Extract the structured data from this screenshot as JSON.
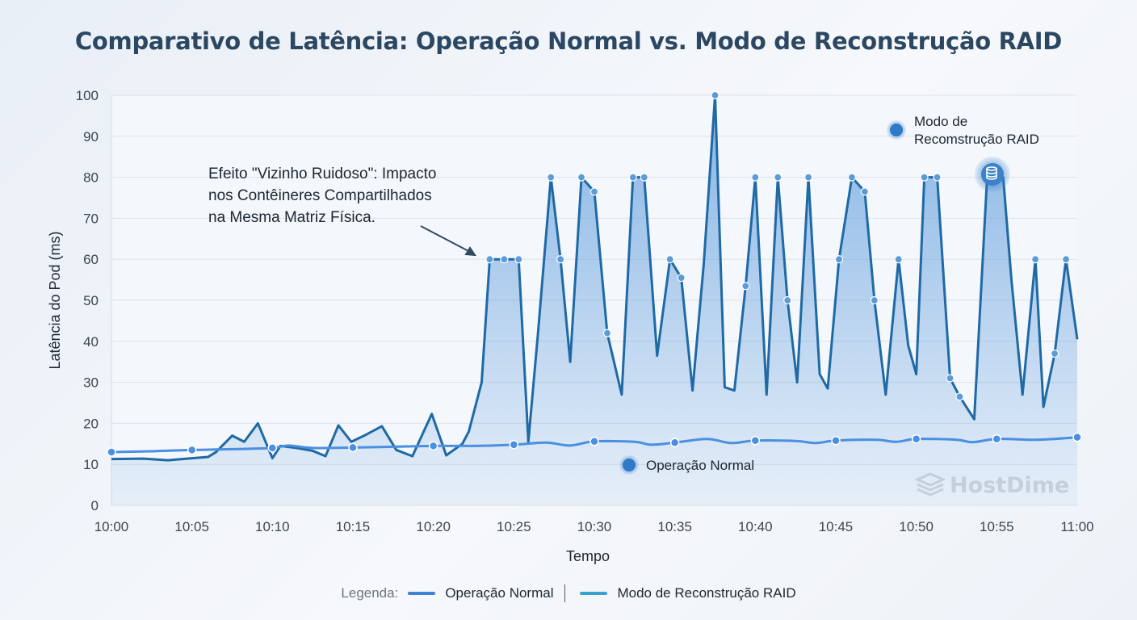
{
  "title": "Comparativo de Latência: Operação Normal vs. Modo de Reconstrução RAID",
  "chart_data": {
    "type": "area",
    "title": "Comparativo de Latência: Operação Normal vs. Modo de Reconstrução RAID",
    "xlabel": "Tempo",
    "ylabel": "Latência do Pod (ms)",
    "xlim": [
      "10:00",
      "11:00"
    ],
    "ylim": [
      0,
      100
    ],
    "x_ticks": [
      "10:00",
      "10:05",
      "10:10",
      "10:15",
      "10:20",
      "10:25",
      "10:30",
      "10:35",
      "10:40",
      "10:45",
      "10:50",
      "10:55",
      "11:00"
    ],
    "y_ticks": [
      0,
      10,
      20,
      30,
      40,
      50,
      60,
      70,
      80,
      90,
      100
    ],
    "grid": true,
    "colors": {
      "raid_line": "#1f6aa5",
      "raid_fill": "#4a90d9",
      "normal_line": "#4a8fe0",
      "marker": "#5b9bd8"
    },
    "series": [
      {
        "name": "Operação Normal",
        "points": [
          [
            "10:00:00",
            13,
            1
          ],
          [
            "10:02:30",
            13.2,
            0
          ],
          [
            "10:05:00",
            13.5,
            1
          ],
          [
            "10:07:30",
            13.7,
            0
          ],
          [
            "10:10:00",
            14,
            1
          ],
          [
            "10:11:00",
            14.6,
            0
          ],
          [
            "10:12:30",
            14,
            0
          ],
          [
            "10:15:00",
            14.1,
            1
          ],
          [
            "10:17:30",
            14.3,
            0
          ],
          [
            "10:20:00",
            14.5,
            1
          ],
          [
            "10:22:30",
            14.5,
            0
          ],
          [
            "10:25:00",
            14.8,
            1
          ],
          [
            "10:27:00",
            15.3,
            0
          ],
          [
            "10:28:30",
            14.6,
            0
          ],
          [
            "10:30:00",
            15.6,
            1
          ],
          [
            "10:32:30",
            15.5,
            0
          ],
          [
            "10:33:30",
            14.8,
            0
          ],
          [
            "10:35:00",
            15.3,
            1
          ],
          [
            "10:37:00",
            16.2,
            0
          ],
          [
            "10:38:30",
            15.2,
            0
          ],
          [
            "10:40:00",
            15.8,
            1
          ],
          [
            "10:42:30",
            15.7,
            0
          ],
          [
            "10:43:45",
            15.2,
            0
          ],
          [
            "10:45:00",
            15.8,
            1
          ],
          [
            "10:47:30",
            16,
            0
          ],
          [
            "10:48:45",
            15.5,
            0
          ],
          [
            "10:50:00",
            16.2,
            1
          ],
          [
            "10:52:30",
            16,
            0
          ],
          [
            "10:53:30",
            15.4,
            0
          ],
          [
            "10:55:00",
            16.2,
            1
          ],
          [
            "10:57:30",
            16,
            0
          ],
          [
            "11:00:00",
            16.6,
            1
          ]
        ]
      },
      {
        "name": "Modo de Reconstrução RAID",
        "points": [
          [
            "10:00:00",
            11.3,
            0
          ],
          [
            "10:02:00",
            11.4,
            0
          ],
          [
            "10:03:30",
            11,
            0
          ],
          [
            "10:05:00",
            11.5,
            0
          ],
          [
            "10:06:00",
            11.8,
            0
          ],
          [
            "10:06:30",
            13,
            0
          ],
          [
            "10:07:30",
            17,
            0
          ],
          [
            "10:08:15",
            15.5,
            0
          ],
          [
            "10:09:06",
            20,
            0
          ],
          [
            "10:10:00",
            11.5,
            0
          ],
          [
            "10:10:30",
            14.5,
            0
          ],
          [
            "10:11:30",
            14,
            0
          ],
          [
            "10:12:30",
            13.3,
            0
          ],
          [
            "10:13:18",
            12,
            0
          ],
          [
            "10:14:06",
            19.5,
            0
          ],
          [
            "10:14:54",
            15.5,
            0
          ],
          [
            "10:15:42",
            17,
            0
          ],
          [
            "10:16:48",
            19.3,
            0
          ],
          [
            "10:17:42",
            13.5,
            0
          ],
          [
            "10:18:42",
            12,
            0
          ],
          [
            "10:19:54",
            22.3,
            0
          ],
          [
            "10:20:48",
            12.2,
            0
          ],
          [
            "10:21:48",
            15,
            0
          ],
          [
            "10:22:12",
            18,
            0
          ],
          [
            "10:23:00",
            30,
            0
          ],
          [
            "10:23:30",
            60,
            1
          ],
          [
            "10:24:24",
            60,
            1
          ],
          [
            "10:25:18",
            60,
            1
          ],
          [
            "10:25:54",
            15.5,
            0
          ],
          [
            "10:26:30",
            42,
            0
          ],
          [
            "10:27:18",
            80,
            1
          ],
          [
            "10:27:54",
            60,
            1
          ],
          [
            "10:28:30",
            35,
            0
          ],
          [
            "10:29:12",
            80,
            1
          ],
          [
            "10:30:00",
            76.5,
            1
          ],
          [
            "10:30:48",
            42,
            1
          ],
          [
            "10:31:42",
            27,
            0
          ],
          [
            "10:32:24",
            80,
            1
          ],
          [
            "10:33:06",
            80,
            1
          ],
          [
            "10:33:54",
            36.5,
            0
          ],
          [
            "10:34:42",
            60,
            1
          ],
          [
            "10:35:24",
            55.5,
            1
          ],
          [
            "10:36:06",
            28,
            0
          ],
          [
            "10:36:48",
            59,
            0
          ],
          [
            "10:37:30",
            100,
            1
          ],
          [
            "10:38:06",
            28.8,
            0
          ],
          [
            "10:38:42",
            28,
            0
          ],
          [
            "10:39:24",
            53.5,
            1
          ],
          [
            "10:40:00",
            80,
            1
          ],
          [
            "10:40:42",
            27,
            0
          ],
          [
            "10:41:24",
            80,
            1
          ],
          [
            "10:42:00",
            50,
            1
          ],
          [
            "10:42:36",
            30,
            0
          ],
          [
            "10:43:18",
            80,
            1
          ],
          [
            "10:44:00",
            32,
            0
          ],
          [
            "10:44:30",
            28.5,
            0
          ],
          [
            "10:45:12",
            60,
            1
          ],
          [
            "10:46:00",
            80,
            1
          ],
          [
            "10:46:48",
            76.5,
            1
          ],
          [
            "10:47:24",
            50,
            1
          ],
          [
            "10:48:06",
            27,
            0
          ],
          [
            "10:48:54",
            60,
            1
          ],
          [
            "10:49:30",
            39,
            0
          ],
          [
            "10:50:00",
            32,
            0
          ],
          [
            "10:50:30",
            80,
            1
          ],
          [
            "10:51:18",
            80,
            1
          ],
          [
            "10:52:06",
            31,
            1
          ],
          [
            "10:52:42",
            26.5,
            1
          ],
          [
            "10:53:36",
            21,
            0
          ],
          [
            "10:54:24",
            80,
            0
          ],
          [
            "10:55:24",
            80,
            0
          ],
          [
            "10:55:54",
            55.5,
            0
          ],
          [
            "10:56:36",
            27,
            0
          ],
          [
            "10:57:24",
            60,
            1
          ],
          [
            "10:57:54",
            24,
            0
          ],
          [
            "10:58:36",
            37,
            1
          ],
          [
            "10:59:18",
            60,
            1
          ],
          [
            "11:00:00",
            40.5,
            0
          ]
        ]
      }
    ],
    "annotations": [
      {
        "text_lines": [
          "Efeito \"Vizinho Ruidoso\": Impacto",
          "nos Contêineres Compartilhados",
          "na Mesma Matriz Física."
        ],
        "points_to": [
          "10:23:30",
          60
        ]
      },
      {
        "text_lines": [
          "Modo de",
          "Recomstrução RAID"
        ],
        "icon": "dot-icon"
      },
      {
        "text_lines": [
          "Operação Normal"
        ],
        "icon": "dot-icon"
      },
      {
        "icon": "database-icon",
        "at": [
          "10:54:54",
          81
        ]
      }
    ],
    "watermark": "HostDime"
  },
  "legend": {
    "label": "Legenda:",
    "items": [
      {
        "label": "Operação Normal",
        "color": "#3f83d6"
      },
      {
        "label": "Modo de Reconstrução RAID",
        "color": "#3aa0d0"
      }
    ]
  }
}
